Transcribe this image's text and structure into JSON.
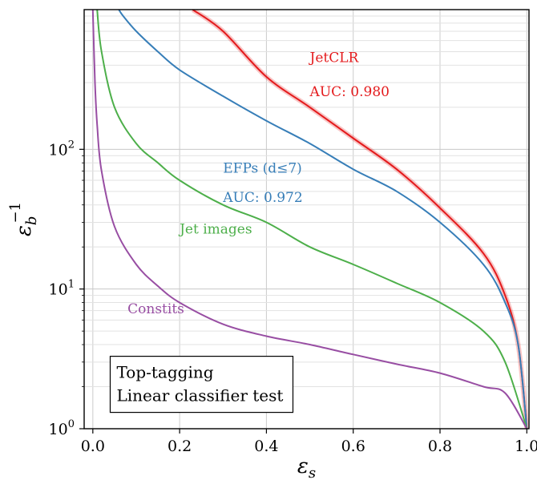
{
  "chart_data": {
    "type": "line",
    "xlabel": "ε_s",
    "ylabel": "ε_b^{-1}",
    "y_scale": "log",
    "xlim": [
      -0.02,
      1.005
    ],
    "ylim": [
      1,
      1000
    ],
    "grid": true,
    "x_ticks": [
      "0.0",
      "0.2",
      "0.4",
      "0.6",
      "0.8",
      "1.0"
    ],
    "y_ticks": [
      {
        "base": "10",
        "exp": "0"
      },
      {
        "base": "10",
        "exp": "1"
      },
      {
        "base": "10",
        "exp": "2"
      }
    ],
    "info_box": [
      "Top-tagging",
      "Linear classifier test"
    ],
    "series": [
      {
        "name": "JetCLR",
        "auc_text": "AUC: 0.980",
        "color": "#e41a1c",
        "x": [
          0.23,
          0.3,
          0.4,
          0.5,
          0.6,
          0.7,
          0.8,
          0.9,
          0.95,
          0.98,
          1.0
        ],
        "y": [
          1000,
          700,
          330,
          200,
          120,
          72,
          38,
          18,
          9,
          4,
          1
        ]
      },
      {
        "name": "EFPs (d≤7)",
        "auc_text": "AUC: 0.972",
        "color": "#377eb8",
        "x": [
          0.06,
          0.07,
          0.1,
          0.15,
          0.2,
          0.3,
          0.4,
          0.5,
          0.6,
          0.7,
          0.8,
          0.9,
          0.95,
          0.98,
          1.0
        ],
        "y": [
          1000,
          900,
          700,
          500,
          370,
          240,
          160,
          110,
          72,
          50,
          30,
          15,
          8,
          4,
          1
        ]
      },
      {
        "name": "Jet images",
        "color": "#4daf4a",
        "x": [
          0.01,
          0.02,
          0.05,
          0.1,
          0.15,
          0.2,
          0.3,
          0.4,
          0.5,
          0.6,
          0.7,
          0.8,
          0.9,
          0.95,
          1.0
        ],
        "y": [
          1000,
          500,
          200,
          110,
          80,
          60,
          40,
          30,
          20,
          15,
          11,
          8,
          5,
          3,
          1
        ]
      },
      {
        "name": "Constits",
        "color": "#984ea3",
        "x": [
          0.0,
          0.005,
          0.01,
          0.02,
          0.05,
          0.1,
          0.15,
          0.2,
          0.3,
          0.4,
          0.5,
          0.6,
          0.7,
          0.8,
          0.9,
          0.95,
          1.0
        ],
        "y": [
          1000,
          300,
          150,
          70,
          28,
          15,
          10.5,
          8,
          5.6,
          4.6,
          4,
          3.4,
          2.9,
          2.5,
          2,
          1.8,
          1
        ]
      }
    ]
  }
}
